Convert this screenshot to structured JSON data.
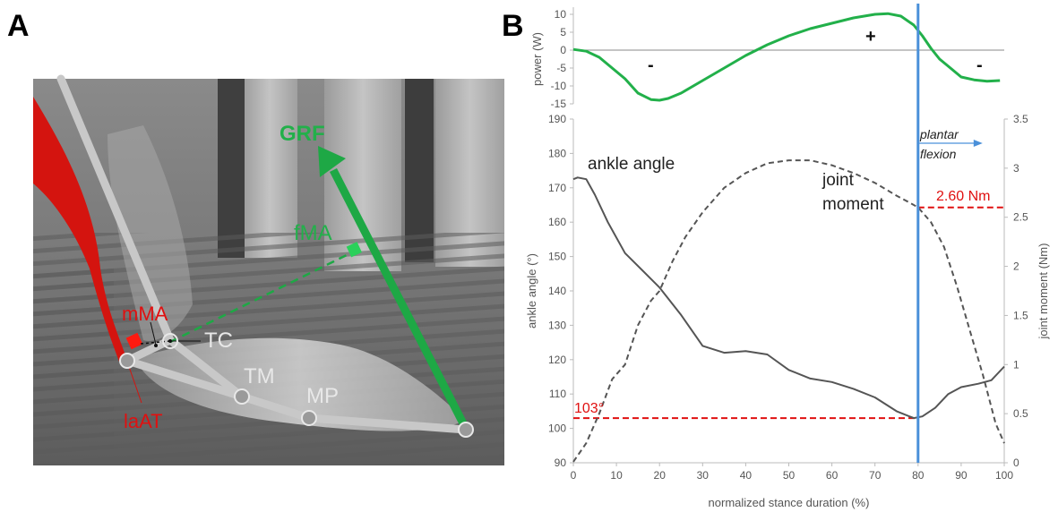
{
  "panel_a": {
    "letter": "A",
    "labels": {
      "grf": "GRF",
      "fma": "fMA",
      "mma": "mMA",
      "tc": "TC",
      "tm": "TM",
      "mp": "MP",
      "laat": "laAT"
    },
    "colors": {
      "muscle": "#d4140f",
      "grf": "#1ea845",
      "bones": "#c8c8c8"
    }
  },
  "panel_b": {
    "letter": "B",
    "annotations": {
      "ankle_angle": "ankle angle",
      "joint_moment_1": "joint",
      "joint_moment_2": "moment",
      "plantar_1": "plantar",
      "plantar_2": "flexion",
      "moment_value": "2.60 Nm",
      "angle_value": "103°",
      "sign_minus_1": "-",
      "sign_plus": "+",
      "sign_minus_2": "-"
    }
  },
  "chart_data": [
    {
      "type": "line",
      "ylabel": "power (W)",
      "ylim": [
        -15,
        10
      ],
      "yticks": [
        10,
        5,
        0,
        -5,
        -10,
        -15
      ],
      "series": [
        {
          "color": "#22b04a",
          "x": [
            0,
            3,
            6,
            9,
            12,
            15,
            18,
            20,
            22,
            25,
            30,
            35,
            40,
            45,
            50,
            55,
            60,
            65,
            70,
            73,
            76,
            79,
            81,
            83,
            85,
            87,
            90,
            93,
            96,
            99
          ],
          "y": [
            0.2,
            -0.3,
            -2,
            -5,
            -8,
            -12,
            -13.8,
            -14,
            -13.5,
            -12,
            -8.5,
            -5,
            -1.5,
            1.5,
            4,
            6,
            7.5,
            9,
            10,
            10.2,
            9.5,
            7,
            4,
            0.5,
            -2.5,
            -4.5,
            -7.5,
            -8.3,
            -8.7,
            -8.5
          ]
        }
      ]
    },
    {
      "type": "line",
      "xlabel": "normalized stance duration (%)",
      "ylabel": "ankle angle (°)",
      "y2label": "joint moment (Nm)",
      "xlim": [
        0,
        100
      ],
      "ylim": [
        90,
        190
      ],
      "y2lim": [
        0,
        3.5
      ],
      "xticks": [
        0,
        10,
        20,
        30,
        40,
        50,
        60,
        70,
        80,
        90,
        100
      ],
      "yticks": [
        90,
        100,
        110,
        120,
        130,
        140,
        150,
        160,
        170,
        180,
        190
      ],
      "y2ticks": [
        0,
        0.5,
        1,
        1.5,
        2,
        2.5,
        3,
        3.5
      ],
      "series": [
        {
          "name": "ankle angle",
          "axis": "left",
          "color": "#555555",
          "x": [
            0,
            1,
            3,
            5,
            8,
            12,
            16,
            20,
            25,
            30,
            35,
            40,
            45,
            50,
            55,
            60,
            65,
            70,
            75,
            79,
            81,
            84,
            87,
            90,
            94,
            97,
            100
          ],
          "y": [
            172.5,
            173,
            172.5,
            168,
            160,
            151,
            146,
            141,
            133,
            124,
            122,
            122.5,
            121.5,
            117,
            114.5,
            113.5,
            111.5,
            109,
            105,
            103,
            103.5,
            106,
            110,
            112,
            113,
            114,
            118
          ]
        },
        {
          "name": "joint moment",
          "axis": "right",
          "style": "dashed",
          "color": "#555555",
          "x": [
            0,
            3,
            6,
            9,
            12,
            15,
            18,
            20,
            23,
            26,
            30,
            35,
            40,
            45,
            50,
            55,
            60,
            65,
            70,
            75,
            78,
            80,
            83,
            86,
            89,
            92,
            95,
            98,
            100
          ],
          "y": [
            0.01,
            0.2,
            0.5,
            0.85,
            1.0,
            1.4,
            1.65,
            1.75,
            2.05,
            2.3,
            2.55,
            2.8,
            2.95,
            3.05,
            3.08,
            3.08,
            3.03,
            2.95,
            2.85,
            2.72,
            2.65,
            2.6,
            2.45,
            2.2,
            1.8,
            1.35,
            0.9,
            0.4,
            0.2
          ]
        }
      ],
      "vertical_line_x": 80,
      "reference_lines": [
        {
          "axis": "right",
          "value": 2.6,
          "from_x": 80,
          "to_x": 100,
          "color": "#e01010"
        },
        {
          "axis": "left",
          "value": 103,
          "from_x": 0,
          "to_x": 80,
          "color": "#e01010"
        }
      ]
    }
  ]
}
